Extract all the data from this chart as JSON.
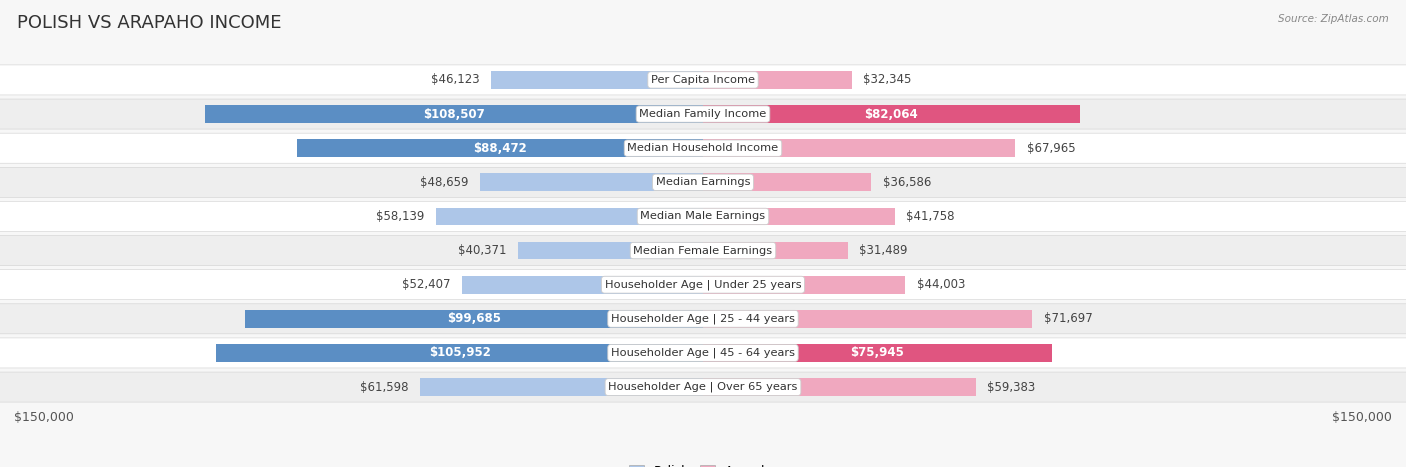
{
  "title": "Polish vs Arapaho Income",
  "title_display": "POLISH VS ARAPAHO INCOME",
  "source": "Source: ZipAtlas.com",
  "categories": [
    "Per Capita Income",
    "Median Family Income",
    "Median Household Income",
    "Median Earnings",
    "Median Male Earnings",
    "Median Female Earnings",
    "Householder Age | Under 25 years",
    "Householder Age | 25 - 44 years",
    "Householder Age | 45 - 64 years",
    "Householder Age | Over 65 years"
  ],
  "polish_values": [
    46123,
    108507,
    88472,
    48659,
    58139,
    40371,
    52407,
    99685,
    105952,
    61598
  ],
  "arapaho_values": [
    32345,
    82064,
    67965,
    36586,
    41758,
    31489,
    44003,
    71697,
    75945,
    59383
  ],
  "polish_labels": [
    "$46,123",
    "$108,507",
    "$88,472",
    "$48,659",
    "$58,139",
    "$40,371",
    "$52,407",
    "$99,685",
    "$105,952",
    "$61,598"
  ],
  "arapaho_labels": [
    "$32,345",
    "$82,064",
    "$67,965",
    "$36,586",
    "$41,758",
    "$31,489",
    "$44,003",
    "$71,697",
    "$75,945",
    "$59,383"
  ],
  "polish_color_light": "#adc6e8",
  "polish_color_dark": "#5b8ec4",
  "arapaho_color_light": "#f0a8bf",
  "arapaho_color_dark": "#e05580",
  "inside_label_threshold": 75000,
  "max_value": 150000,
  "bg_color": "#f7f7f7",
  "row_even_color": "#ffffff",
  "row_odd_color": "#eeeeee",
  "title_fontsize": 13,
  "axis_label_fontsize": 9,
  "value_fontsize": 8.5,
  "cat_fontsize": 8.2
}
